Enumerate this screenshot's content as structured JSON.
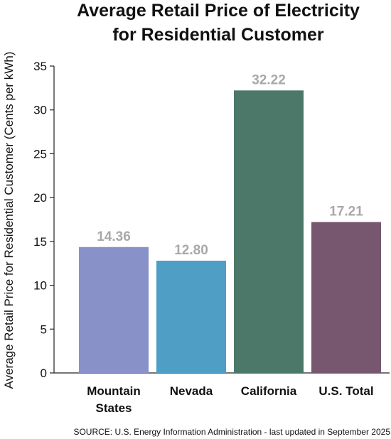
{
  "chart_data": {
    "type": "bar",
    "title_lines": [
      "Average Retail Price of Electricity",
      "for Residential Customer"
    ],
    "ylabel": "Average Retail Price for Residential Customer (Cents per kWh)",
    "xlabel": "",
    "categories": [
      [
        "Mountain",
        "States"
      ],
      [
        "Nevada"
      ],
      [
        "California"
      ],
      [
        "U.S. Total"
      ]
    ],
    "values": [
      14.36,
      12.8,
      32.22,
      17.21
    ],
    "value_labels": [
      "14.36",
      "12.80",
      "32.22",
      "17.21"
    ],
    "bar_colors": [
      "#8891c8",
      "#4f9ec6",
      "#4b7868",
      "#775770"
    ],
    "label_color": "#a8a8a8",
    "ylim": [
      0,
      35
    ],
    "yticks": [
      0,
      5,
      10,
      15,
      20,
      25,
      30,
      35
    ],
    "grid": false,
    "legend": "none"
  },
  "source": "SOURCE: U.S. Energy Information Administration - last updated in September 2025"
}
